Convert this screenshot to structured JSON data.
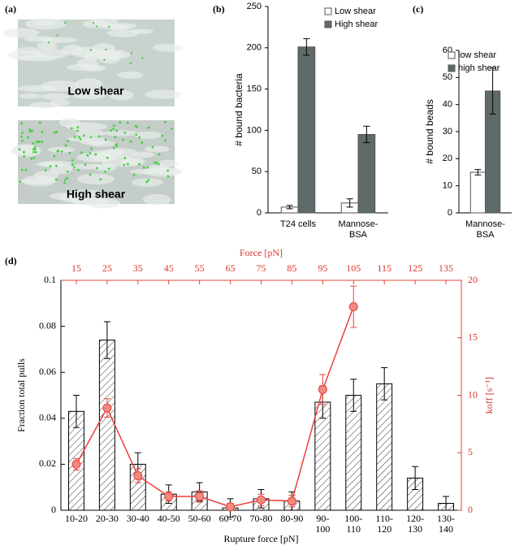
{
  "figure": {
    "panels": [
      "(a)",
      "(b)",
      "(c)",
      "(d)"
    ],
    "images": [
      "Low shear",
      "High shear"
    ]
  },
  "chart_data": [
    {
      "type": "bar",
      "ylabel": "# bound bacteria",
      "categories": [
        "T24 cells",
        "Mannose-BSA"
      ],
      "series": [
        {
          "name": "Low shear",
          "color": "#ffffff",
          "values": [
            7,
            12
          ],
          "errors": [
            2,
            5
          ]
        },
        {
          "name": "High shear",
          "color": "#5f6a6a",
          "values": [
            201,
            95
          ],
          "errors": [
            10,
            10
          ]
        }
      ],
      "ylim": [
        0,
        250
      ],
      "yticks": [
        0,
        50,
        100,
        150,
        200,
        250
      ],
      "legend": "upper right"
    },
    {
      "type": "bar",
      "ylabel": "# bound beads",
      "categories": [
        "Mannose-BSA"
      ],
      "series": [
        {
          "name": "low shear",
          "color": "#ffffff",
          "values": [
            15
          ],
          "errors": [
            1
          ]
        },
        {
          "name": "high shear",
          "color": "#5f6a6a",
          "values": [
            45
          ],
          "errors": [
            8.5
          ]
        }
      ],
      "ylim": [
        0,
        60
      ],
      "yticks": [
        0,
        10,
        20,
        30,
        40,
        50,
        60
      ],
      "legend": "upper right"
    },
    {
      "type": "combo",
      "xlabel": "Rupture force [pN]",
      "ylabel": "Fraction total pulls",
      "x2label": "Force [pN]",
      "y2label": "koff [s⁻¹]",
      "categories": [
        "10-20",
        "20-30",
        "30-40",
        "40-50",
        "50-60",
        "60-70",
        "70-80",
        "80-90",
        "90-100",
        "100-110",
        "110-120",
        "120-130",
        "130-140"
      ],
      "values": [
        0.043,
        0.074,
        0.02,
        0.007,
        0.008,
        0.001,
        0.005,
        0.004,
        0.047,
        0.05,
        0.055,
        0.014,
        0.003
      ],
      "errors": [
        0.007,
        0.008,
        0.005,
        0.004,
        0.004,
        0.004,
        0.004,
        0.004,
        0.007,
        0.007,
        0.007,
        0.005,
        0.003
      ],
      "color": "#ffffff",
      "hatch": true,
      "ylim": [
        0,
        0.1
      ],
      "yticks": [
        0,
        0.02,
        0.04,
        0.06,
        0.08,
        0.1
      ],
      "line": {
        "axis": "y2",
        "color": "#e8403a",
        "x": [
          15,
          25,
          35,
          45,
          55,
          65,
          75,
          85,
          95,
          105
        ],
        "values": [
          4.0,
          8.9,
          3.0,
          1.2,
          1.2,
          0.3,
          0.9,
          0.8,
          10.5,
          17.7
        ],
        "errors": [
          0.5,
          0.8,
          0.6,
          0.4,
          0.5,
          0.3,
          0.5,
          0.5,
          1.3,
          1.8
        ]
      },
      "x2lim": [
        10,
        140
      ],
      "x2ticks": [
        15,
        25,
        35,
        45,
        55,
        65,
        75,
        85,
        95,
        105,
        115,
        125,
        135
      ],
      "y2lim": [
        0,
        20
      ],
      "y2ticks": [
        0,
        5,
        10,
        15,
        20
      ]
    }
  ]
}
